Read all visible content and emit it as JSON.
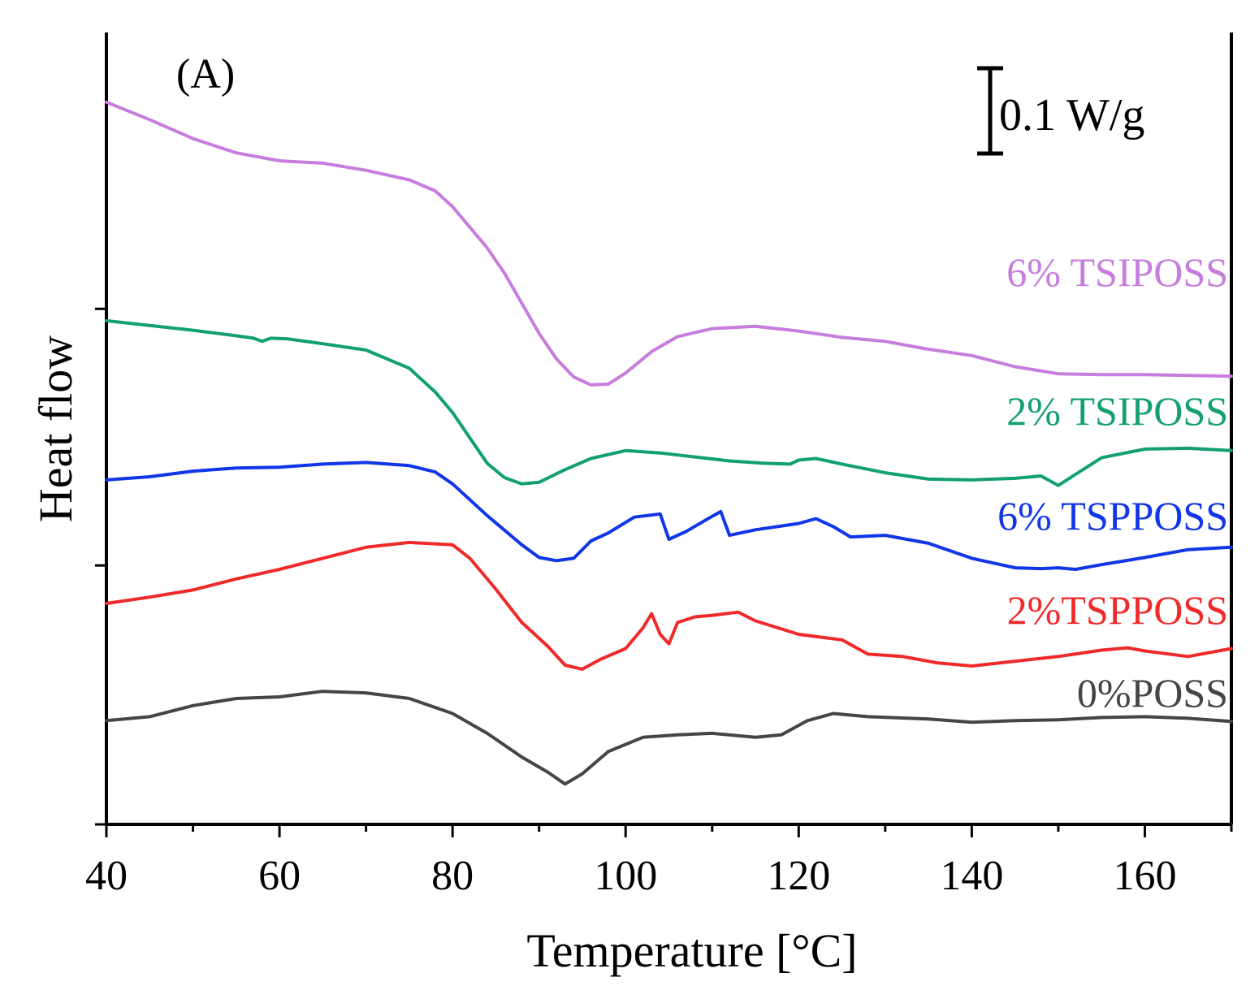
{
  "chart_data": {
    "type": "line",
    "panel_label": "(A)",
    "xlabel": "Temperature [°C]",
    "ylabel": "Heat flow",
    "xlim": [
      40,
      170
    ],
    "ylim": [
      0,
      1
    ],
    "x_ticks": [
      40,
      60,
      80,
      100,
      120,
      140,
      160
    ],
    "x_tick_labels": [
      "40",
      "60",
      "80",
      "100",
      "120",
      "140",
      "160"
    ],
    "x_minor_ticks": [
      50,
      70,
      90,
      110,
      130,
      150,
      170
    ],
    "y_ticks": [
      0.0,
      0.327,
      0.651
    ],
    "grid": false,
    "legend": "inline labels on right",
    "scale_bar": {
      "label": "0.1 W/g",
      "value": 0.1,
      "unit": "W/g"
    },
    "series": [
      {
        "name": "6% TSIPOSS",
        "color": "#c77ddd",
        "points": [
          [
            40,
            0.912
          ],
          [
            45,
            0.89
          ],
          [
            50,
            0.866
          ],
          [
            55,
            0.848
          ],
          [
            60,
            0.838
          ],
          [
            65,
            0.835
          ],
          [
            70,
            0.826
          ],
          [
            75,
            0.814
          ],
          [
            78,
            0.8
          ],
          [
            80,
            0.78
          ],
          [
            84,
            0.728
          ],
          [
            86,
            0.696
          ],
          [
            88,
            0.658
          ],
          [
            90,
            0.62
          ],
          [
            92,
            0.588
          ],
          [
            94,
            0.565
          ],
          [
            96,
            0.555
          ],
          [
            98,
            0.556
          ],
          [
            100,
            0.57
          ],
          [
            103,
            0.597
          ],
          [
            106,
            0.616
          ],
          [
            110,
            0.626
          ],
          [
            115,
            0.629
          ],
          [
            120,
            0.623
          ],
          [
            125,
            0.615
          ],
          [
            130,
            0.61
          ],
          [
            135,
            0.6
          ],
          [
            140,
            0.592
          ],
          [
            145,
            0.578
          ],
          [
            150,
            0.569
          ],
          [
            155,
            0.568
          ],
          [
            160,
            0.568
          ],
          [
            165,
            0.567
          ],
          [
            170,
            0.566
          ]
        ]
      },
      {
        "name": "2% TSIPOSS",
        "color": "#12a070",
        "points": [
          [
            40,
            0.636
          ],
          [
            45,
            0.63
          ],
          [
            50,
            0.624
          ],
          [
            55,
            0.617
          ],
          [
            57,
            0.614
          ],
          [
            58,
            0.61
          ],
          [
            59,
            0.614
          ],
          [
            61,
            0.613
          ],
          [
            65,
            0.607
          ],
          [
            70,
            0.599
          ],
          [
            75,
            0.576
          ],
          [
            78,
            0.546
          ],
          [
            80,
            0.52
          ],
          [
            82,
            0.488
          ],
          [
            84,
            0.456
          ],
          [
            86,
            0.438
          ],
          [
            88,
            0.43
          ],
          [
            90,
            0.432
          ],
          [
            93,
            0.448
          ],
          [
            96,
            0.462
          ],
          [
            100,
            0.472
          ],
          [
            104,
            0.469
          ],
          [
            108,
            0.464
          ],
          [
            112,
            0.459
          ],
          [
            116,
            0.456
          ],
          [
            119,
            0.455
          ],
          [
            120,
            0.46
          ],
          [
            122,
            0.462
          ],
          [
            125,
            0.455
          ],
          [
            130,
            0.444
          ],
          [
            135,
            0.436
          ],
          [
            140,
            0.435
          ],
          [
            145,
            0.437
          ],
          [
            148,
            0.44
          ],
          [
            149,
            0.434
          ],
          [
            150,
            0.428
          ],
          [
            152,
            0.442
          ],
          [
            155,
            0.463
          ],
          [
            160,
            0.474
          ],
          [
            165,
            0.475
          ],
          [
            170,
            0.472
          ]
        ]
      },
      {
        "name": "6% TSPPOSS",
        "color": "#1036e8",
        "points": [
          [
            40,
            0.435
          ],
          [
            45,
            0.439
          ],
          [
            50,
            0.446
          ],
          [
            55,
            0.45
          ],
          [
            60,
            0.451
          ],
          [
            65,
            0.455
          ],
          [
            70,
            0.457
          ],
          [
            75,
            0.453
          ],
          [
            78,
            0.445
          ],
          [
            80,
            0.43
          ],
          [
            84,
            0.39
          ],
          [
            88,
            0.353
          ],
          [
            90,
            0.337
          ],
          [
            92,
            0.333
          ],
          [
            94,
            0.336
          ],
          [
            96,
            0.358
          ],
          [
            98,
            0.368
          ],
          [
            101,
            0.388
          ],
          [
            104,
            0.392
          ],
          [
            105,
            0.36
          ],
          [
            107,
            0.37
          ],
          [
            110,
            0.389
          ],
          [
            111,
            0.395
          ],
          [
            112,
            0.365
          ],
          [
            115,
            0.372
          ],
          [
            120,
            0.38
          ],
          [
            122,
            0.386
          ],
          [
            124,
            0.376
          ],
          [
            126,
            0.363
          ],
          [
            130,
            0.365
          ],
          [
            135,
            0.355
          ],
          [
            140,
            0.336
          ],
          [
            145,
            0.324
          ],
          [
            148,
            0.323
          ],
          [
            150,
            0.324
          ],
          [
            152,
            0.322
          ],
          [
            155,
            0.328
          ],
          [
            160,
            0.337
          ],
          [
            165,
            0.347
          ],
          [
            170,
            0.35
          ]
        ]
      },
      {
        "name": "2%TSPPOSS",
        "color": "#f02a2a",
        "points": [
          [
            40,
            0.279
          ],
          [
            45,
            0.287
          ],
          [
            50,
            0.296
          ],
          [
            55,
            0.31
          ],
          [
            60,
            0.322
          ],
          [
            65,
            0.336
          ],
          [
            70,
            0.35
          ],
          [
            75,
            0.356
          ],
          [
            80,
            0.353
          ],
          [
            82,
            0.336
          ],
          [
            85,
            0.297
          ],
          [
            88,
            0.255
          ],
          [
            91,
            0.225
          ],
          [
            93,
            0.201
          ],
          [
            95,
            0.196
          ],
          [
            97,
            0.208
          ],
          [
            100,
            0.222
          ],
          [
            102,
            0.248
          ],
          [
            103,
            0.266
          ],
          [
            104,
            0.24
          ],
          [
            105,
            0.228
          ],
          [
            106,
            0.255
          ],
          [
            108,
            0.262
          ],
          [
            110,
            0.264
          ],
          [
            113,
            0.268
          ],
          [
            115,
            0.257
          ],
          [
            120,
            0.24
          ],
          [
            125,
            0.233
          ],
          [
            128,
            0.215
          ],
          [
            132,
            0.212
          ],
          [
            136,
            0.204
          ],
          [
            140,
            0.2
          ],
          [
            145,
            0.206
          ],
          [
            150,
            0.212
          ],
          [
            155,
            0.22
          ],
          [
            158,
            0.223
          ],
          [
            160,
            0.219
          ],
          [
            165,
            0.212
          ],
          [
            170,
            0.222
          ]
        ]
      },
      {
        "name": "0%POSS",
        "color": "#454545",
        "points": [
          [
            40,
            0.131
          ],
          [
            45,
            0.136
          ],
          [
            50,
            0.15
          ],
          [
            55,
            0.159
          ],
          [
            60,
            0.161
          ],
          [
            65,
            0.168
          ],
          [
            70,
            0.166
          ],
          [
            75,
            0.159
          ],
          [
            80,
            0.14
          ],
          [
            84,
            0.115
          ],
          [
            88,
            0.085
          ],
          [
            91,
            0.066
          ],
          [
            93,
            0.051
          ],
          [
            95,
            0.064
          ],
          [
            98,
            0.092
          ],
          [
            102,
            0.11
          ],
          [
            106,
            0.113
          ],
          [
            110,
            0.115
          ],
          [
            115,
            0.11
          ],
          [
            118,
            0.113
          ],
          [
            121,
            0.131
          ],
          [
            124,
            0.14
          ],
          [
            128,
            0.136
          ],
          [
            135,
            0.133
          ],
          [
            140,
            0.129
          ],
          [
            145,
            0.131
          ],
          [
            150,
            0.132
          ],
          [
            155,
            0.135
          ],
          [
            160,
            0.136
          ],
          [
            165,
            0.134
          ],
          [
            170,
            0.13
          ]
        ]
      }
    ]
  }
}
